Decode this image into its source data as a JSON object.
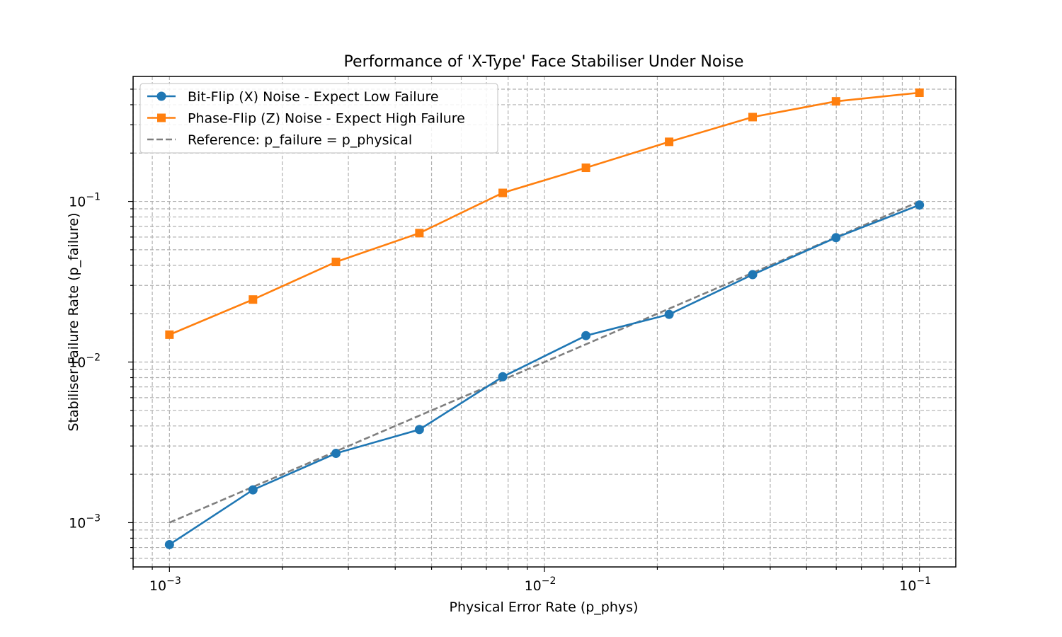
{
  "chart_data": {
    "type": "line",
    "title": "Performance of 'X-Type' Face Stabiliser Under Noise",
    "xlabel": "Physical Error Rate (p_phys)",
    "ylabel": "Stabiliser Failure Rate (p_failure)",
    "xscale": "log",
    "yscale": "log",
    "xlim": [
      0.0008,
      0.125
    ],
    "ylim": [
      0.00053,
      0.6
    ],
    "grid": "both (major and minor), dashed",
    "legend_position": "top-left",
    "x": [
      0.001,
      0.00167,
      0.00278,
      0.00464,
      0.00774,
      0.0129,
      0.0215,
      0.0359,
      0.0599,
      0.1
    ],
    "series": [
      {
        "name": "Bit-Flip (X) Noise - Expect Low Failure",
        "color": "#1f77b4",
        "marker": "circle",
        "linestyle": "solid",
        "values": [
          0.00073,
          0.0016,
          0.0027,
          0.0038,
          0.0081,
          0.0146,
          0.0198,
          0.035,
          0.0595,
          0.095
        ]
      },
      {
        "name": "Phase-Flip (Z) Noise - Expect High Failure",
        "color": "#ff7f0e",
        "marker": "square",
        "linestyle": "solid",
        "values": [
          0.0148,
          0.0245,
          0.042,
          0.0635,
          0.113,
          0.162,
          0.235,
          0.335,
          0.42,
          0.475
        ]
      },
      {
        "name": "Reference: p_failure = p_physical",
        "color": "#7f7f7f",
        "marker": "none",
        "linestyle": "dashed",
        "values": [
          0.001,
          0.00167,
          0.00278,
          0.00464,
          0.00774,
          0.0129,
          0.0215,
          0.0359,
          0.0599,
          0.1
        ]
      }
    ],
    "x_ticks": [
      {
        "value": 0.001,
        "base": "10",
        "exp": "−3"
      },
      {
        "value": 0.01,
        "base": "10",
        "exp": "−2"
      },
      {
        "value": 0.1,
        "base": "10",
        "exp": "−1"
      }
    ],
    "y_ticks": [
      {
        "value": 0.001,
        "base": "10",
        "exp": "−3"
      },
      {
        "value": 0.01,
        "base": "10",
        "exp": "−2"
      },
      {
        "value": 0.1,
        "base": "10",
        "exp": "−1"
      }
    ]
  }
}
